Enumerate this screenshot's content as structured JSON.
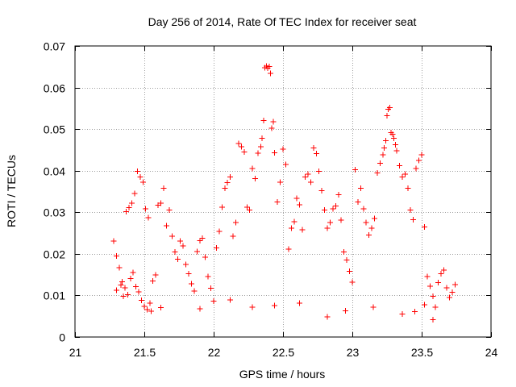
{
  "chart_data": {
    "type": "scatter",
    "title": "Day 256 of 2014, Rate Of TEC Index for receiver seat",
    "xlabel": "GPS time / hours",
    "ylabel": "ROTI / TECUs",
    "xlim": [
      21,
      24
    ],
    "ylim": [
      0,
      0.07
    ],
    "xticks": [
      "21",
      "21.5",
      "22",
      "22.5",
      "23",
      "23.5",
      "24"
    ],
    "xtick_values": [
      21,
      21.5,
      22,
      22.5,
      23,
      23.5,
      24
    ],
    "yticks": [
      "0",
      "0.01",
      "0.02",
      "0.03",
      "0.04",
      "0.05",
      "0.06",
      "0.07"
    ],
    "ytick_values": [
      0,
      0.01,
      0.02,
      0.03,
      0.04,
      0.05,
      0.06,
      0.07
    ],
    "grid": true,
    "marker": "+",
    "color": "#ff0000",
    "series": [
      {
        "name": "ROTI",
        "points": [
          [
            21.28,
            0.0231
          ],
          [
            21.3,
            0.0195
          ],
          [
            21.32,
            0.0167
          ],
          [
            21.34,
            0.0133
          ],
          [
            21.36,
            0.0118
          ],
          [
            21.38,
            0.0102
          ],
          [
            21.3,
            0.0112
          ],
          [
            21.33,
            0.0125
          ],
          [
            21.35,
            0.0098
          ],
          [
            21.4,
            0.0141
          ],
          [
            21.42,
            0.0155
          ],
          [
            21.44,
            0.0121
          ],
          [
            21.46,
            0.0109
          ],
          [
            21.48,
            0.0088
          ],
          [
            21.5,
            0.0074
          ],
          [
            21.52,
            0.0066
          ],
          [
            21.54,
            0.0081
          ],
          [
            21.37,
            0.0302
          ],
          [
            21.39,
            0.0311
          ],
          [
            21.41,
            0.0322
          ],
          [
            21.43,
            0.0345
          ],
          [
            21.45,
            0.0398
          ],
          [
            21.47,
            0.0385
          ],
          [
            21.49,
            0.0372
          ],
          [
            21.51,
            0.0308
          ],
          [
            21.53,
            0.0287
          ],
          [
            21.56,
            0.0135
          ],
          [
            21.58,
            0.0149
          ],
          [
            21.6,
            0.0317
          ],
          [
            21.62,
            0.0322
          ],
          [
            21.64,
            0.0358
          ],
          [
            21.66,
            0.0268
          ],
          [
            21.68,
            0.0305
          ],
          [
            21.7,
            0.0242
          ],
          [
            21.72,
            0.0205
          ],
          [
            21.74,
            0.0187
          ],
          [
            21.76,
            0.0231
          ],
          [
            21.78,
            0.0219
          ],
          [
            21.8,
            0.0175
          ],
          [
            21.82,
            0.0152
          ],
          [
            21.84,
            0.0128
          ],
          [
            21.86,
            0.0111
          ],
          [
            21.88,
            0.0206
          ],
          [
            21.9,
            0.0232
          ],
          [
            21.92,
            0.0238
          ],
          [
            21.94,
            0.0192
          ],
          [
            21.96,
            0.0145
          ],
          [
            21.98,
            0.0117
          ],
          [
            22.0,
            0.0086
          ],
          [
            22.02,
            0.0214
          ],
          [
            22.04,
            0.0254
          ],
          [
            22.06,
            0.0312
          ],
          [
            22.08,
            0.0358
          ],
          [
            22.1,
            0.0371
          ],
          [
            22.12,
            0.0385
          ],
          [
            22.14,
            0.0242
          ],
          [
            22.16,
            0.0275
          ],
          [
            22.18,
            0.0465
          ],
          [
            22.2,
            0.0458
          ],
          [
            22.22,
            0.0445
          ],
          [
            22.24,
            0.0312
          ],
          [
            22.26,
            0.0305
          ],
          [
            22.28,
            0.0405
          ],
          [
            22.3,
            0.0381
          ],
          [
            22.32,
            0.0442
          ],
          [
            22.34,
            0.0458
          ],
          [
            22.35,
            0.0478
          ],
          [
            22.36,
            0.0521
          ],
          [
            22.37,
            0.0648
          ],
          [
            22.38,
            0.0652
          ],
          [
            22.39,
            0.0647
          ],
          [
            22.4,
            0.0651
          ],
          [
            22.41,
            0.0634
          ],
          [
            22.42,
            0.0502
          ],
          [
            22.43,
            0.0518
          ],
          [
            22.44,
            0.0443
          ],
          [
            22.46,
            0.0325
          ],
          [
            22.48,
            0.0372
          ],
          [
            22.5,
            0.0452
          ],
          [
            22.52,
            0.0415
          ],
          [
            22.54,
            0.0211
          ],
          [
            22.56,
            0.0262
          ],
          [
            22.58,
            0.0277
          ],
          [
            22.6,
            0.0334
          ],
          [
            22.62,
            0.0318
          ],
          [
            22.64,
            0.0258
          ],
          [
            22.66,
            0.0385
          ],
          [
            22.68,
            0.0392
          ],
          [
            22.7,
            0.0372
          ],
          [
            22.72,
            0.0455
          ],
          [
            22.74,
            0.0441
          ],
          [
            22.76,
            0.0398
          ],
          [
            22.78,
            0.0352
          ],
          [
            22.8,
            0.0305
          ],
          [
            22.82,
            0.0262
          ],
          [
            22.84,
            0.0275
          ],
          [
            22.86,
            0.0308
          ],
          [
            22.88,
            0.0315
          ],
          [
            22.9,
            0.0342
          ],
          [
            22.92,
            0.0281
          ],
          [
            22.94,
            0.0205
          ],
          [
            22.96,
            0.0185
          ],
          [
            22.98,
            0.0158
          ],
          [
            23.0,
            0.0132
          ],
          [
            23.02,
            0.0402
          ],
          [
            23.04,
            0.0325
          ],
          [
            23.06,
            0.0358
          ],
          [
            23.08,
            0.0308
          ],
          [
            23.1,
            0.0275
          ],
          [
            23.12,
            0.0245
          ],
          [
            23.14,
            0.0262
          ],
          [
            23.16,
            0.0285
          ],
          [
            23.18,
            0.0395
          ],
          [
            23.2,
            0.0418
          ],
          [
            23.22,
            0.0438
          ],
          [
            23.23,
            0.0455
          ],
          [
            23.24,
            0.0472
          ],
          [
            23.25,
            0.0532
          ],
          [
            23.26,
            0.0548
          ],
          [
            23.27,
            0.0552
          ],
          [
            23.28,
            0.0492
          ],
          [
            23.29,
            0.0488
          ],
          [
            23.3,
            0.0478
          ],
          [
            23.31,
            0.0462
          ],
          [
            23.32,
            0.0448
          ],
          [
            23.34,
            0.0412
          ],
          [
            23.36,
            0.0385
          ],
          [
            23.38,
            0.0392
          ],
          [
            23.4,
            0.0358
          ],
          [
            23.42,
            0.0305
          ],
          [
            23.44,
            0.0282
          ],
          [
            23.46,
            0.0405
          ],
          [
            23.48,
            0.0425
          ],
          [
            23.5,
            0.0438
          ],
          [
            23.52,
            0.0265
          ],
          [
            23.54,
            0.0145
          ],
          [
            23.56,
            0.0122
          ],
          [
            23.58,
            0.0098
          ],
          [
            23.6,
            0.0072
          ],
          [
            23.62,
            0.0131
          ],
          [
            23.64,
            0.0152
          ],
          [
            23.66,
            0.0161
          ],
          [
            23.68,
            0.0118
          ],
          [
            23.7,
            0.0095
          ],
          [
            23.72,
            0.0108
          ],
          [
            23.74,
            0.0126
          ],
          [
            23.45,
            0.0061
          ],
          [
            23.58,
            0.0042
          ],
          [
            23.15,
            0.0072
          ],
          [
            22.95,
            0.0063
          ],
          [
            22.62,
            0.0081
          ],
          [
            22.28,
            0.0072
          ],
          [
            21.9,
            0.0068
          ],
          [
            21.62,
            0.0071
          ],
          [
            21.55,
            0.0062
          ],
          [
            22.82,
            0.0048
          ],
          [
            23.36,
            0.0055
          ],
          [
            23.52,
            0.0078
          ],
          [
            22.12,
            0.0089
          ],
          [
            22.44,
            0.0076
          ]
        ]
      }
    ]
  }
}
